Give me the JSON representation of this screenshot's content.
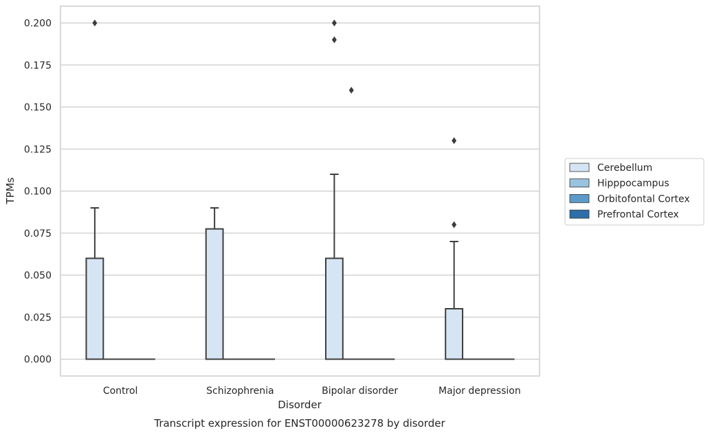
{
  "chart_data": {
    "type": "box",
    "xlabel": "Disorder",
    "ylabel": "TPMs",
    "caption": "Transcript expression for ENST00000623278 by disorder",
    "categories": [
      "Control",
      "Schizophrenia",
      "Bipolar disorder",
      "Major depression"
    ],
    "ylim": [
      -0.01,
      0.21
    ],
    "yticks": [
      0.0,
      0.025,
      0.05,
      0.075,
      0.1,
      0.125,
      0.15,
      0.175,
      0.2
    ],
    "ytick_labels": [
      "0.000",
      "0.025",
      "0.050",
      "0.075",
      "0.100",
      "0.125",
      "0.150",
      "0.175",
      "0.200"
    ],
    "grid": "horizontal",
    "legend_position": "right",
    "series": [
      {
        "name": "Cerebellum",
        "color": "#d6e5f3",
        "boxes": [
          {
            "q1": 0.0,
            "median": 0.0,
            "q3": 0.06,
            "whisker_low": 0.0,
            "whisker_high": 0.09,
            "outliers": [
              0.2
            ]
          },
          {
            "q1": 0.0,
            "median": 0.0,
            "q3": 0.0775,
            "whisker_low": 0.0,
            "whisker_high": 0.09,
            "outliers": []
          },
          {
            "q1": 0.0,
            "median": 0.0,
            "q3": 0.06,
            "whisker_low": 0.0,
            "whisker_high": 0.11,
            "outliers": [
              0.2,
              0.19
            ]
          },
          {
            "q1": 0.0,
            "median": 0.0,
            "q3": 0.03,
            "whisker_low": 0.0,
            "whisker_high": 0.07,
            "outliers": [
              0.13,
              0.08
            ]
          }
        ]
      },
      {
        "name": "Hipppocampus",
        "color": "#9ac3de",
        "boxes": [
          {
            "q1": 0.0,
            "median": 0.0,
            "q3": 0.0,
            "whisker_low": 0.0,
            "whisker_high": 0.0,
            "outliers": []
          },
          {
            "q1": 0.0,
            "median": 0.0,
            "q3": 0.0,
            "whisker_low": 0.0,
            "whisker_high": 0.0,
            "outliers": []
          },
          {
            "q1": 0.0,
            "median": 0.0,
            "q3": 0.0,
            "whisker_low": 0.0,
            "whisker_high": 0.0,
            "outliers": [
              0.16
            ]
          },
          {
            "q1": 0.0,
            "median": 0.0,
            "q3": 0.0,
            "whisker_low": 0.0,
            "whisker_high": 0.0,
            "outliers": []
          }
        ]
      },
      {
        "name": "Orbitofontal Cortex",
        "color": "#5c9ac9",
        "boxes": [
          {
            "q1": 0.0,
            "median": 0.0,
            "q3": 0.0,
            "whisker_low": 0.0,
            "whisker_high": 0.0,
            "outliers": []
          },
          {
            "q1": 0.0,
            "median": 0.0,
            "q3": 0.0,
            "whisker_low": 0.0,
            "whisker_high": 0.0,
            "outliers": []
          },
          {
            "q1": 0.0,
            "median": 0.0,
            "q3": 0.0,
            "whisker_low": 0.0,
            "whisker_high": 0.0,
            "outliers": []
          },
          {
            "q1": 0.0,
            "median": 0.0,
            "q3": 0.0,
            "whisker_low": 0.0,
            "whisker_high": 0.0,
            "outliers": []
          }
        ]
      },
      {
        "name": "Prefrontal Cortex",
        "color": "#2e6ea8",
        "boxes": [
          {
            "q1": 0.0,
            "median": 0.0,
            "q3": 0.0,
            "whisker_low": 0.0,
            "whisker_high": 0.0,
            "outliers": []
          },
          {
            "q1": 0.0,
            "median": 0.0,
            "q3": 0.0,
            "whisker_low": 0.0,
            "whisker_high": 0.0,
            "outliers": []
          },
          {
            "q1": 0.0,
            "median": 0.0,
            "q3": 0.0,
            "whisker_low": 0.0,
            "whisker_high": 0.0,
            "outliers": []
          },
          {
            "q1": 0.0,
            "median": 0.0,
            "q3": 0.0,
            "whisker_low": 0.0,
            "whisker_high": 0.0,
            "outliers": []
          }
        ]
      }
    ]
  }
}
